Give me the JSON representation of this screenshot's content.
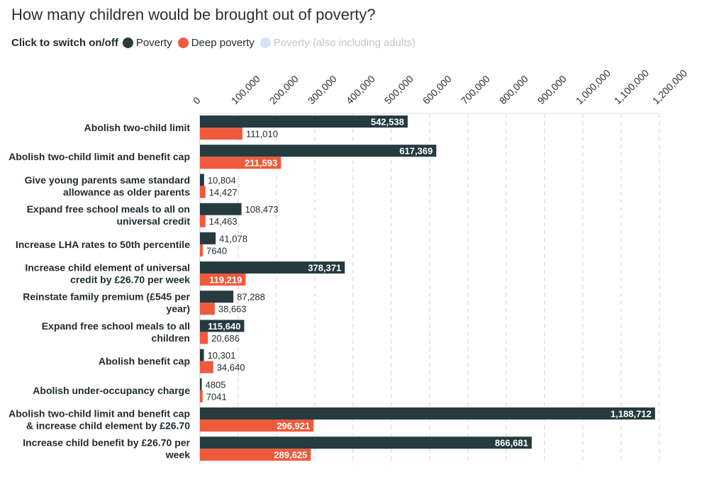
{
  "title": "How many children would be brought out of poverty?",
  "legend": {
    "label": "Click to switch on/off",
    "items": [
      {
        "name": "Poverty",
        "color": "#253b40",
        "active": true
      },
      {
        "name": "Deep poverty",
        "color": "#ef5a3c",
        "active": true
      },
      {
        "name": "Poverty (also including adults)",
        "color": "#d3e3f3",
        "active": false
      }
    ]
  },
  "chart_data": {
    "type": "bar",
    "orientation": "horizontal",
    "title": "How many children would be brought out of poverty?",
    "xlim": [
      0,
      1200000
    ],
    "x_ticks": [
      0,
      100000,
      200000,
      300000,
      400000,
      500000,
      600000,
      700000,
      800000,
      900000,
      1000000,
      1100000,
      1200000
    ],
    "x_tick_labels": [
      "0",
      "100,000",
      "200,000",
      "300,000",
      "400,000",
      "500,000",
      "600,000",
      "700,000",
      "800,000",
      "900,000",
      "1,000,000",
      "1,100,000",
      "1,200,000"
    ],
    "grid": "vertical dashed",
    "categories": [
      [
        "Abolish two-child limit"
      ],
      [
        "Abolish two-child limit and benefit cap"
      ],
      [
        "Give young parents same standard",
        "allowance as older parents"
      ],
      [
        "Expand free school meals to all on",
        "universal credit"
      ],
      [
        "Increase LHA rates to 50th percentile"
      ],
      [
        "Increase child element of universal",
        "credit by £26.70 per week"
      ],
      [
        "Reinstate family premium (£545 per",
        "year)"
      ],
      [
        "Expand free school meals to all",
        "children"
      ],
      [
        "Abolish benefit cap"
      ],
      [
        "Abolish under-occupancy charge"
      ],
      [
        "Abolish two-child limit and benefit cap",
        "& increase child element by £26.70"
      ],
      [
        "Increase child benefit by £26.70 per",
        "week"
      ]
    ],
    "series": [
      {
        "name": "Poverty",
        "color": "#253b40",
        "values": [
          542538,
          617369,
          10804,
          108473,
          41078,
          378371,
          87288,
          115640,
          10301,
          4805,
          1188712,
          866681
        ],
        "labels": [
          "542,538",
          "617,369",
          "10,804",
          "108,473",
          "41,078",
          "378,371",
          "87,288",
          "115,640",
          "10,301",
          "4805",
          "1,188,712",
          "866,681"
        ]
      },
      {
        "name": "Deep poverty",
        "color": "#ef5a3c",
        "values": [
          111010,
          211593,
          14427,
          14463,
          7640,
          119219,
          38663,
          20686,
          34640,
          7041,
          296921,
          289625
        ],
        "labels": [
          "111,010",
          "211,593",
          "14,427",
          "14,463",
          "7640",
          "119,219",
          "38,663",
          "20,686",
          "34,640",
          "7041",
          "296,921",
          "289,625"
        ]
      }
    ]
  }
}
